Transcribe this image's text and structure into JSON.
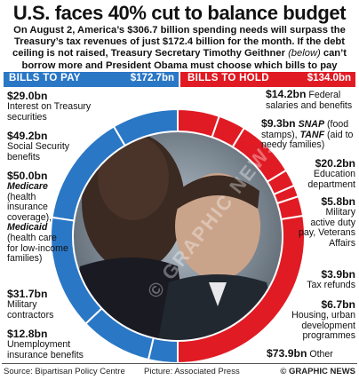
{
  "title": "U.S. faces 40% cut to balance budget",
  "intro": {
    "main": "On August 2, America’s $306.7 billion spending needs will surpass the Treasury’s tax revenues of just $172.4 billion for the month. If the debt ceiling is not raised, Treasury Secretary Timothy Geithner",
    "below": "(below)",
    "rest": "can’t borrow more and President Obama must choose which bills to pay"
  },
  "pay_band": {
    "label": "BILLS TO PAY",
    "amount": "$172.7bn"
  },
  "hold_band": {
    "label": "BILLS TO HOLD",
    "amount": "$134.0bn"
  },
  "pay_items": [
    {
      "value": "$29.0bn",
      "text": "Interest on Treasury securities"
    },
    {
      "value": "$49.2bn",
      "text": "Social Security benefits"
    },
    {
      "value": "$50.0bn",
      "medicare": "Medicare",
      "text1": "(health insurance coverage),",
      "medicaid": "Medicaid",
      "text2": "(health care for low-income families)"
    },
    {
      "value": "$31.7bn",
      "text": "Military contractors"
    },
    {
      "value": "$12.8bn",
      "text": "Unemployment insurance benefits"
    }
  ],
  "hold_items": [
    {
      "value": "$14.2bn",
      "text": "Federal salaries and benefits"
    },
    {
      "value": "$9.3bn",
      "snap": "SNAP",
      "text1": "(food stamps),",
      "tanf": "TANF",
      "text2": "(aid to needy families)"
    },
    {
      "value": "$20.2bn",
      "text": "Education department"
    },
    {
      "value": "$5.8bn",
      "text": "Military active duty pay, Veterans Affairs"
    },
    {
      "value": "$3.9bn",
      "text": "Tax refunds"
    },
    {
      "value": "$6.7bn",
      "text": "Housing, urban development programmes"
    },
    {
      "value": "$73.9bn",
      "text": "Other"
    }
  ],
  "footer": {
    "source": "Source: Bipartisan Policy Centre",
    "picture": "Picture: Associated Press",
    "copyright": "© GRAPHIC NEWS"
  },
  "watermark": "© GRAPHIC NEWS",
  "colors": {
    "pay": "#2a77c6",
    "hold": "#e01b24",
    "separator": "#ffffff"
  },
  "chart_data": {
    "type": "pie",
    "style": "donut",
    "groups": [
      {
        "name": "BILLS TO PAY",
        "total": 172.7,
        "categories": [
          "Interest on Treasury securities",
          "Social Security benefits",
          "Medicare, Medicaid",
          "Military contractors",
          "Unemployment insurance benefits"
        ],
        "values": [
          29.0,
          49.2,
          50.0,
          31.7,
          12.8
        ]
      },
      {
        "name": "BILLS TO HOLD",
        "total": 134.0,
        "categories": [
          "Federal salaries and benefits",
          "SNAP, TANF",
          "Education department",
          "Military active duty pay, Veterans Affairs",
          "Tax refunds",
          "Housing, urban development programmes",
          "Other"
        ],
        "values": [
          14.2,
          9.3,
          20.2,
          5.8,
          3.9,
          6.7,
          73.9
        ]
      }
    ],
    "units": "$bn"
  }
}
